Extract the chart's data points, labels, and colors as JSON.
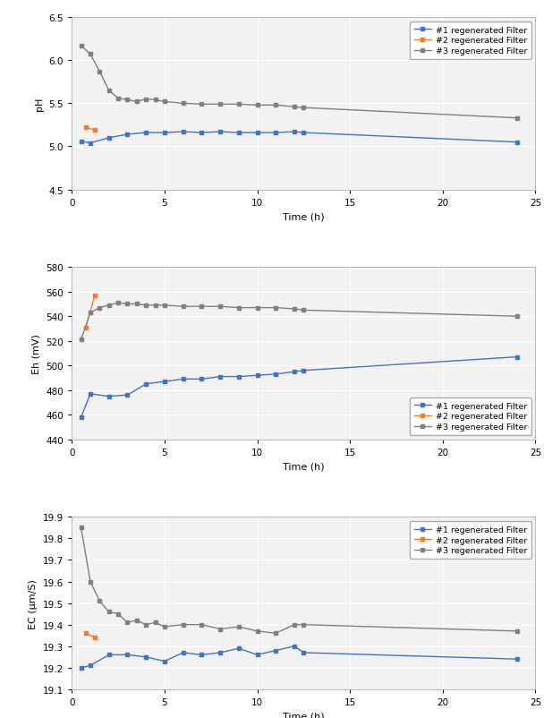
{
  "ph": {
    "filter1": {
      "x": [
        0.5,
        1.0,
        2.0,
        3.0,
        4.0,
        5.0,
        6.0,
        7.0,
        8.0,
        9.0,
        10.0,
        11.0,
        12.0,
        12.5,
        24.0
      ],
      "y": [
        5.06,
        5.04,
        5.1,
        5.14,
        5.16,
        5.16,
        5.17,
        5.16,
        5.17,
        5.16,
        5.16,
        5.16,
        5.17,
        5.16,
        5.05
      ]
    },
    "filter2": {
      "x": [
        0.75,
        1.25
      ],
      "y": [
        5.22,
        5.19
      ]
    },
    "filter3": {
      "x": [
        0.5,
        1.0,
        1.5,
        2.0,
        2.5,
        3.0,
        3.5,
        4.0,
        4.5,
        5.0,
        6.0,
        7.0,
        8.0,
        9.0,
        10.0,
        11.0,
        12.0,
        12.5,
        24.0
      ],
      "y": [
        6.17,
        6.07,
        5.87,
        5.65,
        5.56,
        5.54,
        5.52,
        5.55,
        5.54,
        5.52,
        5.5,
        5.49,
        5.49,
        5.49,
        5.48,
        5.48,
        5.46,
        5.45,
        5.33
      ]
    },
    "ylabel": "pH",
    "ylim": [
      4.5,
      6.5
    ],
    "yticks": [
      4.5,
      5.0,
      5.5,
      6.0,
      6.5
    ],
    "legend_loc": "upper right"
  },
  "eh": {
    "filter1": {
      "x": [
        0.5,
        1.0,
        2.0,
        3.0,
        4.0,
        5.0,
        6.0,
        7.0,
        8.0,
        9.0,
        10.0,
        11.0,
        12.0,
        12.5,
        24.0
      ],
      "y": [
        458,
        477,
        475,
        476,
        485,
        487,
        489,
        489,
        491,
        491,
        492,
        493,
        495,
        496,
        507
      ]
    },
    "filter2": {
      "x": [
        0.75,
        1.25
      ],
      "y": [
        531,
        557
      ]
    },
    "filter3": {
      "x": [
        0.5,
        1.0,
        1.5,
        2.0,
        2.5,
        3.0,
        3.5,
        4.0,
        4.5,
        5.0,
        6.0,
        7.0,
        8.0,
        9.0,
        10.0,
        11.0,
        12.0,
        12.5,
        24.0
      ],
      "y": [
        521,
        543,
        547,
        549,
        551,
        550,
        550,
        549,
        549,
        549,
        548,
        548,
        548,
        547,
        547,
        547,
        546,
        545,
        540
      ]
    },
    "ylabel": "Eh (mV)",
    "ylim": [
      440,
      580
    ],
    "yticks": [
      440,
      460,
      480,
      500,
      520,
      540,
      560,
      580
    ],
    "legend_loc": "lower right"
  },
  "ec": {
    "filter1": {
      "x": [
        0.5,
        1.0,
        2.0,
        3.0,
        4.0,
        5.0,
        6.0,
        7.0,
        8.0,
        9.0,
        10.0,
        11.0,
        12.0,
        12.5,
        24.0
      ],
      "y": [
        19.2,
        19.21,
        19.26,
        19.26,
        19.25,
        19.23,
        19.27,
        19.26,
        19.27,
        19.29,
        19.26,
        19.28,
        19.3,
        19.27,
        19.24
      ]
    },
    "filter2": {
      "x": [
        0.75,
        1.25
      ],
      "y": [
        19.36,
        19.34
      ]
    },
    "filter3": {
      "x": [
        0.5,
        1.0,
        1.5,
        2.0,
        2.5,
        3.0,
        3.5,
        4.0,
        4.5,
        5.0,
        6.0,
        7.0,
        8.0,
        9.0,
        10.0,
        11.0,
        12.0,
        12.5,
        24.0
      ],
      "y": [
        19.85,
        19.6,
        19.51,
        19.46,
        19.45,
        19.41,
        19.42,
        19.4,
        19.41,
        19.39,
        19.4,
        19.4,
        19.38,
        19.39,
        19.37,
        19.36,
        19.4,
        19.4,
        19.37
      ]
    },
    "ylabel": "EC (μm/S)",
    "ylim": [
      19.1,
      19.9
    ],
    "yticks": [
      19.1,
      19.2,
      19.3,
      19.4,
      19.5,
      19.6,
      19.7,
      19.8,
      19.9
    ],
    "legend_loc": "upper right"
  },
  "xlabel": "Time (h)",
  "xlim": [
    0,
    25
  ],
  "xticks": [
    0,
    5,
    10,
    15,
    20,
    25
  ],
  "color1": "#4472C4",
  "color2": "#ED7D31",
  "color3": "#808080",
  "legend_labels": [
    "#1 regenerated Filter",
    "#2 regenerated Filter",
    "#3 regenerated Filter"
  ],
  "marker": "s",
  "markersize": 3.5,
  "linewidth": 1.0,
  "plot_bg": "#F2F2F2",
  "grid_color": "#FFFFFF",
  "fig_bg": "#FFFFFF",
  "outer_bg": "#D0D0D0"
}
